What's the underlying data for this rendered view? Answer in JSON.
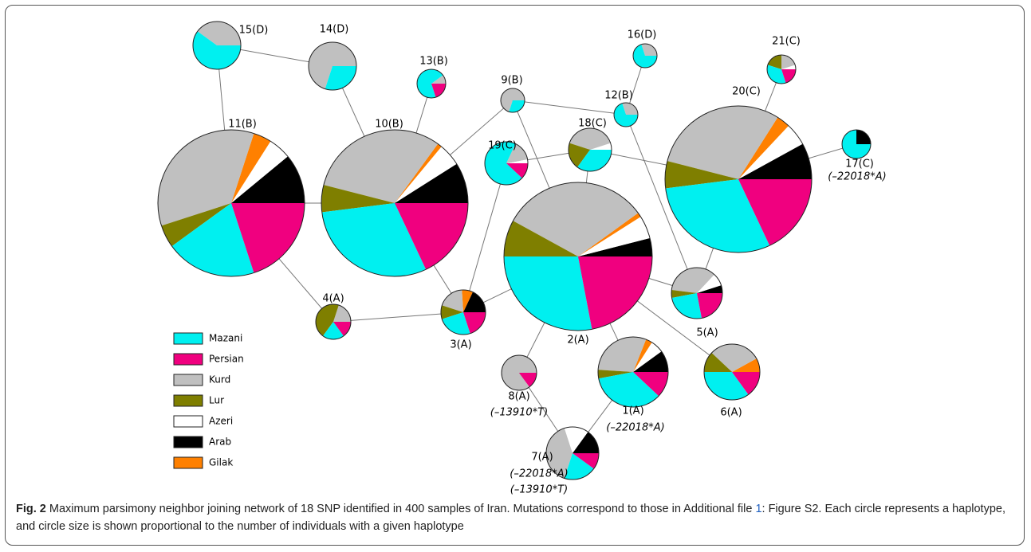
{
  "legend": [
    {
      "name": "Mazani",
      "color": "#00f0f0"
    },
    {
      "name": "Persian",
      "color": "#f0007f"
    },
    {
      "name": "Kurd",
      "color": "#c0c0c0"
    },
    {
      "name": "Lur",
      "color": "#7f7f00"
    },
    {
      "name": "Azeri",
      "color": "#ffffff"
    },
    {
      "name": "Arab",
      "color": "#000000"
    },
    {
      "name": "Gilak",
      "color": "#ff8000"
    }
  ],
  "nodes": [
    {
      "label": "1(A)",
      "notes": [
        "(–22018*A)"
      ],
      "values": [
        35,
        12,
        30,
        4,
        6,
        10,
        3
      ]
    },
    {
      "label": "2(A)",
      "values": [
        28,
        22,
        32,
        8,
        5,
        4,
        1
      ]
    },
    {
      "label": "3(A)",
      "values": [
        25,
        20,
        19,
        10,
        0,
        18,
        8
      ]
    },
    {
      "label": "4(A)",
      "values": [
        20,
        15,
        20,
        45,
        0,
        0,
        0
      ]
    },
    {
      "label": "5(A)",
      "values": [
        25,
        22,
        35,
        5,
        8,
        5,
        0
      ]
    },
    {
      "label": "6(A)",
      "values": [
        35,
        15,
        30,
        12,
        0,
        0,
        8
      ]
    },
    {
      "label": "7(A)",
      "notes": [
        "(–22018*A)",
        "(–13910*T)"
      ],
      "values": [
        20,
        10,
        40,
        0,
        15,
        15,
        0
      ]
    },
    {
      "label": "8(A)",
      "notes": [
        "(–13910*T)"
      ],
      "values": [
        0,
        15,
        85,
        0,
        0,
        0,
        0
      ]
    },
    {
      "label": "9(B)",
      "values": [
        30,
        0,
        70,
        0,
        0,
        0,
        0
      ]
    },
    {
      "label": "10(B)",
      "values": [
        30,
        18,
        31,
        6,
        5,
        9,
        1
      ]
    },
    {
      "label": "11(B)",
      "values": [
        20,
        20,
        35,
        5,
        5,
        11,
        4
      ]
    },
    {
      "label": "12(B)",
      "values": [
        70,
        0,
        30,
        0,
        0,
        0,
        0
      ]
    },
    {
      "label": "13(B)",
      "values": [
        70,
        20,
        10,
        0,
        0,
        0,
        0
      ]
    },
    {
      "label": "14(D)",
      "values": [
        30,
        0,
        70,
        0,
        0,
        0,
        0
      ]
    },
    {
      "label": "15(D)",
      "values": [
        60,
        0,
        40,
        0,
        0,
        0,
        0
      ]
    },
    {
      "label": "16(D)",
      "values": [
        70,
        0,
        30,
        0,
        0,
        0,
        0
      ]
    },
    {
      "label": "17(C)",
      "notes": [
        "(–22018*A)"
      ],
      "values": [
        75,
        0,
        0,
        0,
        0,
        25,
        0
      ]
    },
    {
      "label": "18(C)",
      "values": [
        35,
        0,
        40,
        20,
        5,
        0,
        0
      ]
    },
    {
      "label": "19(C)",
      "values": [
        70,
        12,
        15,
        0,
        3,
        0,
        0
      ]
    },
    {
      "label": "20(C)",
      "values": [
        30,
        18,
        30,
        6,
        5,
        8,
        3
      ]
    },
    {
      "label": "21(C)",
      "values": [
        35,
        20,
        20,
        20,
        5,
        0,
        0
      ]
    }
  ],
  "caption": {
    "label": "Fig. 2",
    "text_before": "Maximum parsimony neighbor joining network of 18 SNP identified in 400 samples of Iran. Mutations correspond to those in Additional file",
    "link": "1",
    "text_after": ": Figure S2. Each circle represents a haplotype, and circle size is shown proportional to the number of individuals with a given haplotype"
  }
}
